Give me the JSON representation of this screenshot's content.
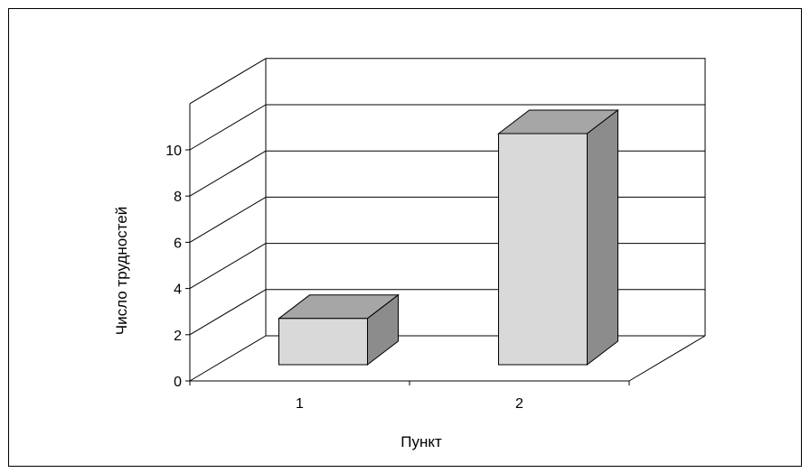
{
  "chart_data": {
    "type": "bar",
    "view": "3d",
    "categories": [
      "1",
      "2"
    ],
    "series": [
      {
        "values": [
          2,
          10
        ]
      }
    ],
    "xlabel": "Пункт",
    "ylabel": "Число трудностей",
    "ylim": [
      0,
      10
    ],
    "yticks": [
      "0",
      "2",
      "4",
      "6",
      "8",
      "10"
    ],
    "grid": true,
    "legend": "none",
    "colors": {
      "bar_front": "#d9d9d9",
      "bar_side": "#8c8c8c",
      "bar_top": "#a6a6a6",
      "axis": "#000000",
      "grid": "#000000"
    }
  }
}
